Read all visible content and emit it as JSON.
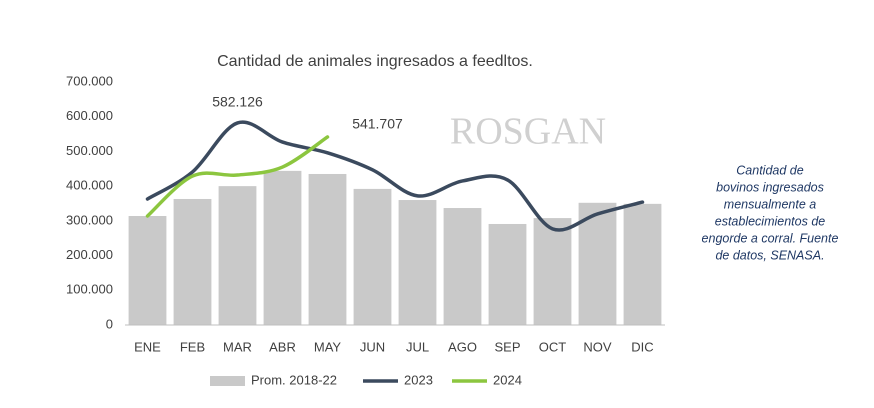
{
  "chart_data": {
    "type": "bar",
    "title": "Cantidad de animales ingresados a feedltos.",
    "watermark": "ROSGAN",
    "note": [
      "Cantidad de",
      "bovinos ingresados",
      "mensualmente a",
      "establecimientos de",
      "engorde a corral. Fuente",
      "de datos, SENASA."
    ],
    "categories": [
      "ENE",
      "FEB",
      "MAR",
      "ABR",
      "MAY",
      "JUN",
      "JUL",
      "AGO",
      "SEP",
      "OCT",
      "NOV",
      "DIC"
    ],
    "series": [
      {
        "name": "Prom. 2018-22",
        "type": "bar",
        "color": "#c9c9c9",
        "values": [
          314000,
          363000,
          400000,
          444000,
          435000,
          392000,
          360000,
          337000,
          291000,
          308000,
          352000,
          349000
        ]
      },
      {
        "name": "2023",
        "type": "line",
        "color": "#3b4a5e",
        "values": [
          363000,
          441000,
          582126,
          527000,
          496000,
          447000,
          372000,
          415000,
          418000,
          277000,
          320000,
          354000
        ],
        "value_labels": [
          null,
          null,
          "582.126",
          null,
          null,
          null,
          null,
          null,
          null,
          null,
          null,
          null
        ]
      },
      {
        "name": "2024",
        "type": "line",
        "color": "#8cc63f",
        "values": [
          314000,
          429000,
          432000,
          455000,
          541707,
          null,
          null,
          null,
          null,
          null,
          null,
          null
        ],
        "value_labels": [
          null,
          null,
          null,
          null,
          "541.707",
          null,
          null,
          null,
          null,
          null,
          null,
          null
        ]
      }
    ],
    "ylim": [
      0,
      700000
    ],
    "yticks": [
      0,
      {
        "value": 100000,
        "label": "100.000"
      },
      {
        "value": 200000,
        "label": "200.000"
      },
      {
        "value": 300000,
        "label": "300.000"
      },
      {
        "value": 400000,
        "label": "400.000"
      },
      {
        "value": 500000,
        "label": "500.000"
      },
      {
        "value": 600000,
        "label": "600.000"
      },
      {
        "value": 700000,
        "label": "700.000"
      }
    ],
    "grid": false,
    "legend": "bottom"
  }
}
